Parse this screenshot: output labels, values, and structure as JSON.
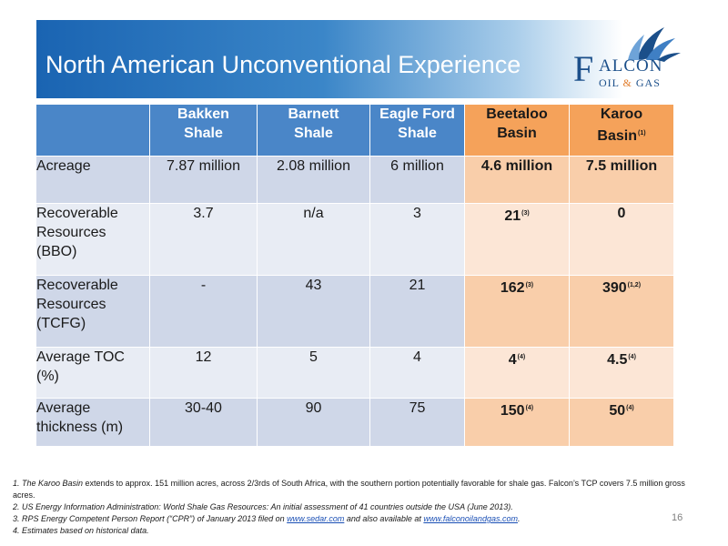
{
  "slide": {
    "title": "North American Unconventional Experience",
    "page_number": "16"
  },
  "logo": {
    "big_letter": "F",
    "rest": "ALCON",
    "line2_a": "OIL ",
    "line2_amp": "&",
    "line2_b": " GAS"
  },
  "table": {
    "headers": [
      {
        "line1": "Bakken",
        "line2": "Shale",
        "sup": ""
      },
      {
        "line1": "Barnett",
        "line2": "Shale",
        "sup": ""
      },
      {
        "line1": "Eagle Ford",
        "line2": "Shale",
        "sup": ""
      },
      {
        "line1": "Beetaloo",
        "line2": "Basin",
        "sup": ""
      },
      {
        "line1": "Karoo",
        "line2": "Basin",
        "sup": "(1)"
      }
    ],
    "rows": [
      {
        "label_lines": [
          "Acreage"
        ],
        "cells": [
          {
            "v": "7.87 million",
            "sup": ""
          },
          {
            "v": "2.08 million",
            "sup": ""
          },
          {
            "v": "6 million",
            "sup": ""
          },
          {
            "v": "4.6 million",
            "sup": ""
          },
          {
            "v": "7.5 million",
            "sup": ""
          }
        ]
      },
      {
        "label_lines": [
          "Recoverable",
          "Resources",
          "(BBO)"
        ],
        "cells": [
          {
            "v": "3.7",
            "sup": ""
          },
          {
            "v": "n/a",
            "sup": ""
          },
          {
            "v": "3",
            "sup": ""
          },
          {
            "v": "21",
            "sup": "(3)"
          },
          {
            "v": "0",
            "sup": ""
          }
        ]
      },
      {
        "label_lines": [
          "Recoverable",
          "Resources",
          "(TCFG)"
        ],
        "cells": [
          {
            "v": "-",
            "sup": ""
          },
          {
            "v": "43",
            "sup": ""
          },
          {
            "v": "21",
            "sup": ""
          },
          {
            "v": "162",
            "sup": "(3)"
          },
          {
            "v": "390",
            "sup": "(1,2)"
          }
        ]
      },
      {
        "label_lines": [
          "Average TOC",
          "(%)"
        ],
        "cells": [
          {
            "v": "12",
            "sup": ""
          },
          {
            "v": "5",
            "sup": ""
          },
          {
            "v": "4",
            "sup": ""
          },
          {
            "v": "4",
            "sup": "(4)"
          },
          {
            "v": "4.5",
            "sup": "(4)"
          }
        ]
      },
      {
        "label_lines": [
          "Average",
          "thickness (m)"
        ],
        "cells": [
          {
            "v": "30-40",
            "sup": ""
          },
          {
            "v": "90",
            "sup": ""
          },
          {
            "v": "75",
            "sup": ""
          },
          {
            "v": "150",
            "sup": "(4)"
          },
          {
            "v": "50",
            "sup": "(4)"
          }
        ]
      }
    ]
  },
  "footnotes": {
    "fn1_a": "1. The Karoo Basin",
    "fn1_b": " extends to approx. 151 million acres, across 2/3rds of South Africa, with the southern portion potentially favorable for shale  gas. Falcon’s TCP covers 7.5 million  gross acres.",
    "fn2": "2. US Energy Information Administration: World Shale Gas Resources: An initial assessment of 41 countries outside the USA (June 2013).",
    "fn3_a": "3. RPS Energy Competent Person Report (“CPR”) of January 2013 filed on ",
    "fn3_link1": "www.sedar.com",
    "fn3_b": " and also available at ",
    "fn3_link2": "www.falconoilandgas.com",
    "fn3_c": ".",
    "fn4": "4. Estimates based on historical data."
  },
  "colors": {
    "header_blue": "#4a86c8",
    "header_orange": "#f5a25a",
    "banner_blue": "#1a64b2"
  }
}
